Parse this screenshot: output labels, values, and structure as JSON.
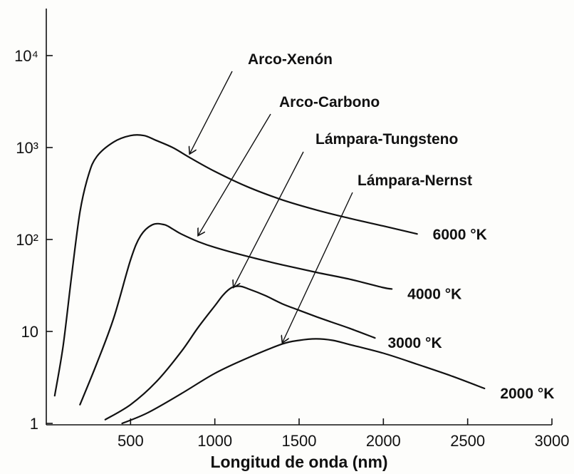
{
  "chart_data": {
    "type": "line",
    "title": "",
    "xlabel": "Longitud de onda (nm)",
    "ylabel": "",
    "xlim": [
      0,
      3000
    ],
    "ylim": [
      1,
      30000
    ],
    "yscale": "log",
    "grid": false,
    "x_ticks": [
      500,
      1000,
      1500,
      2000,
      2500,
      3000
    ],
    "x_tick_labels": [
      "500",
      "1000",
      "1500",
      "2000",
      "2500",
      "3000"
    ],
    "y_ticks": [
      1,
      10,
      100,
      1000,
      10000
    ],
    "y_tick_labels": [
      "1",
      "10",
      "10²",
      "10³",
      "10⁴"
    ],
    "series": [
      {
        "name": "6000 °K",
        "source": "Arco-Xenón",
        "x": [
          50,
          100,
          150,
          200,
          250,
          300,
          400,
          500,
          580,
          650,
          750,
          850,
          1000,
          1200,
          1400,
          1600,
          1800,
          2000,
          2200
        ],
        "y": [
          2,
          7,
          40,
          200,
          500,
          800,
          1150,
          1350,
          1350,
          1200,
          1000,
          780,
          550,
          370,
          270,
          210,
          170,
          140,
          115
        ]
      },
      {
        "name": "4000 °K",
        "source": "Arco-Carbono",
        "x": [
          200,
          300,
          400,
          500,
          560,
          630,
          700,
          750,
          800,
          900,
          1000,
          1200,
          1400,
          1600,
          1800,
          2000,
          2050
        ],
        "y": [
          1.6,
          4.5,
          14,
          60,
          110,
          145,
          145,
          130,
          115,
          95,
          82,
          65,
          53,
          44,
          37,
          30,
          29
        ]
      },
      {
        "name": "3000 °K",
        "source": "Lámpara-Tungsteno",
        "x": [
          350,
          500,
          650,
          800,
          900,
          1000,
          1050,
          1100,
          1150,
          1200,
          1300,
          1400,
          1500,
          1600,
          1700,
          1800,
          1950
        ],
        "y": [
          1.1,
          1.6,
          2.8,
          6,
          11,
          19,
          25,
          30,
          31,
          29,
          24.5,
          20,
          17,
          14.5,
          12.5,
          10.8,
          8.5
        ]
      },
      {
        "name": "2000 °K",
        "source": "Lámpara-Nernst",
        "x": [
          450,
          600,
          800,
          1000,
          1200,
          1400,
          1500,
          1600,
          1700,
          1800,
          2000,
          2200,
          2400,
          2600
        ],
        "y": [
          1,
          1.3,
          2.1,
          3.5,
          5.2,
          7.3,
          8,
          8.3,
          8,
          7.2,
          5.8,
          4.4,
          3.3,
          2.4
        ]
      }
    ],
    "annotations": [
      {
        "label": "Arco-Xenón",
        "arrow_to": [
          850,
          850
        ]
      },
      {
        "label": "Arco-Carbono",
        "arrow_to": [
          900,
          110
        ]
      },
      {
        "label": "Lámpara-Tungsteno",
        "arrow_to": [
          1110,
          30
        ]
      },
      {
        "label": "Lámpara-Nernst",
        "arrow_to": [
          1400,
          7.5
        ]
      }
    ]
  }
}
